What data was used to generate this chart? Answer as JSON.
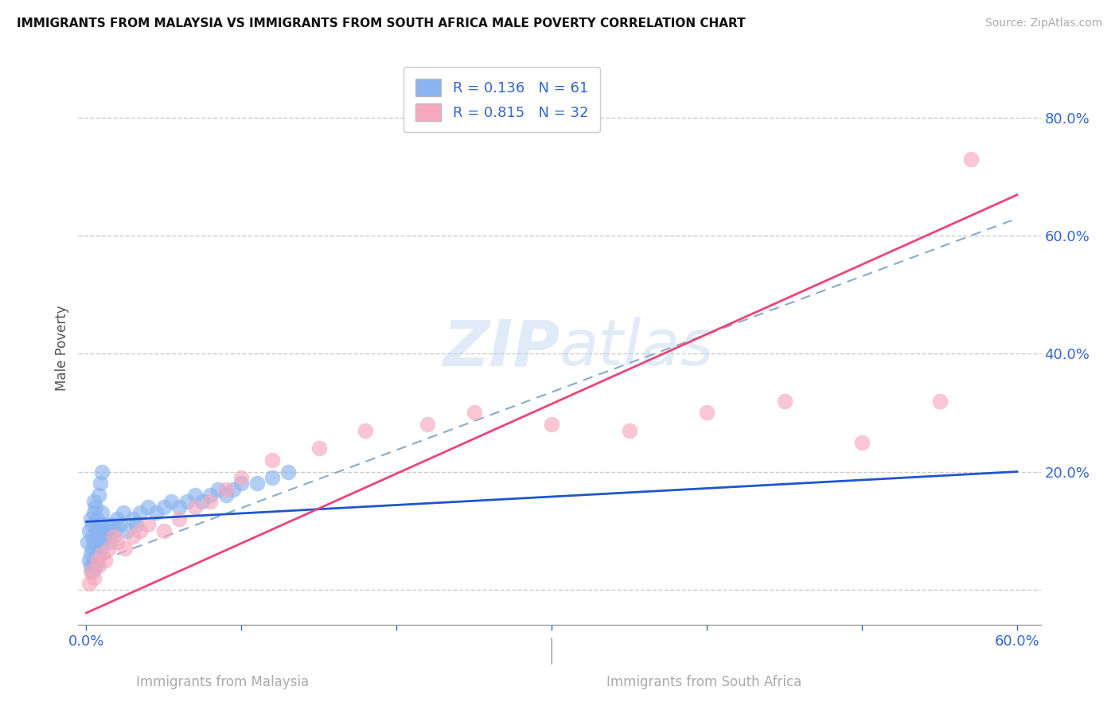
{
  "title": "IMMIGRANTS FROM MALAYSIA VS IMMIGRANTS FROM SOUTH AFRICA MALE POVERTY CORRELATION CHART",
  "source": "Source: ZipAtlas.com",
  "xlabel_malaysia": "Immigrants from Malaysia",
  "xlabel_south_africa": "Immigrants from South Africa",
  "ylabel": "Male Poverty",
  "r_malaysia": 0.136,
  "n_malaysia": 61,
  "r_south_africa": 0.815,
  "n_south_africa": 32,
  "xlim": [
    -0.005,
    0.615
  ],
  "ylim": [
    -0.06,
    0.88
  ],
  "color_malaysia": "#8ab4f0",
  "color_south_africa": "#f5a8be",
  "line_color_malaysia": "#2255cc",
  "line_color_south_africa": "#ee4477",
  "dash_line_color": "#88aacc",
  "legend_text_color": "#3366cc",
  "watermark_color": "#c5d8f0",
  "malaysia_scatter_x": [
    0.001,
    0.002,
    0.002,
    0.003,
    0.003,
    0.003,
    0.004,
    0.004,
    0.004,
    0.004,
    0.005,
    0.005,
    0.005,
    0.005,
    0.006,
    0.006,
    0.006,
    0.006,
    0.007,
    0.007,
    0.007,
    0.008,
    0.008,
    0.008,
    0.009,
    0.009,
    0.009,
    0.01,
    0.01,
    0.01,
    0.011,
    0.012,
    0.013,
    0.014,
    0.015,
    0.016,
    0.017,
    0.018,
    0.02,
    0.022,
    0.024,
    0.026,
    0.03,
    0.032,
    0.035,
    0.04,
    0.045,
    0.05,
    0.055,
    0.06,
    0.065,
    0.07,
    0.075,
    0.08,
    0.085,
    0.09,
    0.095,
    0.1,
    0.11,
    0.12,
    0.13
  ],
  "malaysia_scatter_y": [
    0.08,
    0.05,
    0.1,
    0.04,
    0.06,
    0.12,
    0.03,
    0.07,
    0.09,
    0.11,
    0.05,
    0.08,
    0.13,
    0.15,
    0.04,
    0.07,
    0.1,
    0.14,
    0.05,
    0.09,
    0.12,
    0.06,
    0.1,
    0.16,
    0.07,
    0.11,
    0.18,
    0.08,
    0.13,
    0.2,
    0.09,
    0.1,
    0.11,
    0.1,
    0.09,
    0.08,
    0.11,
    0.1,
    0.12,
    0.11,
    0.13,
    0.1,
    0.12,
    0.11,
    0.13,
    0.14,
    0.13,
    0.14,
    0.15,
    0.14,
    0.15,
    0.16,
    0.15,
    0.16,
    0.17,
    0.16,
    0.17,
    0.18,
    0.18,
    0.19,
    0.2
  ],
  "south_africa_scatter_x": [
    0.002,
    0.003,
    0.005,
    0.007,
    0.008,
    0.01,
    0.012,
    0.015,
    0.018,
    0.02,
    0.025,
    0.03,
    0.035,
    0.04,
    0.05,
    0.06,
    0.07,
    0.08,
    0.09,
    0.1,
    0.12,
    0.15,
    0.18,
    0.22,
    0.25,
    0.3,
    0.35,
    0.4,
    0.45,
    0.5,
    0.55,
    0.57
  ],
  "south_africa_scatter_y": [
    0.01,
    0.03,
    0.02,
    0.05,
    0.04,
    0.06,
    0.05,
    0.07,
    0.09,
    0.08,
    0.07,
    0.09,
    0.1,
    0.11,
    0.1,
    0.12,
    0.14,
    0.15,
    0.17,
    0.19,
    0.22,
    0.24,
    0.27,
    0.28,
    0.3,
    0.28,
    0.27,
    0.3,
    0.32,
    0.25,
    0.32,
    0.73
  ],
  "malaysia_line_x0": 0.0,
  "malaysia_line_y0": 0.115,
  "malaysia_line_x1": 0.6,
  "malaysia_line_y1": 0.2,
  "sa_line_x0": 0.0,
  "sa_line_y0": -0.04,
  "sa_line_x1": 0.6,
  "sa_line_y1": 0.67,
  "dash_line_x0": 0.0,
  "dash_line_y0": 0.04,
  "dash_line_x1": 0.6,
  "dash_line_y1": 0.63
}
